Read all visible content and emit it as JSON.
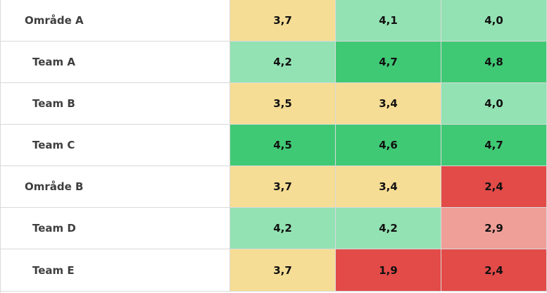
{
  "rows": [
    {
      "label": "Område A",
      "kind": "area",
      "values": [
        "3,7",
        "4,1",
        "4,0"
      ],
      "levels": [
        "yellow",
        "lightgreen",
        "lightgreen"
      ]
    },
    {
      "label": "Team A",
      "kind": "team",
      "values": [
        "4,2",
        "4,7",
        "4,8"
      ],
      "levels": [
        "lightgreen",
        "green",
        "green"
      ]
    },
    {
      "label": "Team B",
      "kind": "team",
      "values": [
        "3,5",
        "3,4",
        "4,0"
      ],
      "levels": [
        "yellow",
        "yellow",
        "lightgreen"
      ]
    },
    {
      "label": "Team C",
      "kind": "team",
      "values": [
        "4,5",
        "4,6",
        "4,7"
      ],
      "levels": [
        "green",
        "green",
        "green"
      ]
    },
    {
      "label": "Område B",
      "kind": "area",
      "values": [
        "3,7",
        "3,4",
        "2,4"
      ],
      "levels": [
        "yellow",
        "yellow",
        "red"
      ]
    },
    {
      "label": "Team D",
      "kind": "team",
      "values": [
        "4,2",
        "4,2",
        "2,9"
      ],
      "levels": [
        "lightgreen",
        "lightgreen",
        "pink"
      ]
    },
    {
      "label": "Team E",
      "kind": "team",
      "values": [
        "3,7",
        "1,9",
        "2,4"
      ],
      "levels": [
        "yellow",
        "red",
        "red"
      ]
    }
  ],
  "colors": {
    "yellow": "#f6dd95",
    "lightgreen": "#93e2b3",
    "green": "#40c975",
    "red": "#e24b48",
    "pink": "#ef9f98"
  }
}
